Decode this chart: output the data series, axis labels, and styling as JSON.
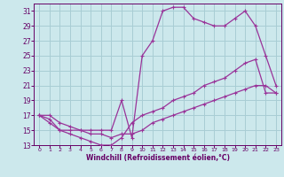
{
  "bg_color": "#cce8ec",
  "grid_color": "#a8cdd4",
  "line_color": "#993399",
  "marker_color": "#993399",
  "xlabel": "Windchill (Refroidissement éolien,°C)",
  "xlabel_color": "#660066",
  "tick_color": "#660066",
  "xlim": [
    -0.5,
    23.5
  ],
  "ylim": [
    13,
    32
  ],
  "yticks": [
    13,
    15,
    17,
    19,
    21,
    23,
    25,
    27,
    29,
    31
  ],
  "xticks": [
    0,
    1,
    2,
    3,
    4,
    5,
    6,
    7,
    8,
    9,
    10,
    11,
    12,
    13,
    14,
    15,
    16,
    17,
    18,
    19,
    20,
    21,
    22,
    23
  ],
  "line1_x": [
    0,
    1,
    2,
    3,
    4,
    5,
    6,
    7,
    8,
    9,
    10,
    11,
    12,
    13,
    14,
    15,
    16,
    17,
    18,
    19,
    20,
    21,
    22,
    23
  ],
  "line1_y": [
    17,
    16.5,
    15,
    14.5,
    14,
    13.5,
    13,
    13,
    14,
    16,
    17,
    17.5,
    18,
    19,
    19.5,
    20,
    21,
    21.5,
    22,
    23,
    24,
    24.5,
    20,
    20
  ],
  "line2_x": [
    0,
    1,
    2,
    3,
    4,
    5,
    6,
    7,
    8,
    9,
    10,
    11,
    12,
    13,
    14,
    15,
    16,
    17,
    18,
    19,
    20,
    21,
    22,
    23
  ],
  "line2_y": [
    17,
    17,
    16,
    15.5,
    15,
    14.5,
    14.5,
    14,
    14.5,
    14.5,
    15,
    16,
    16.5,
    17,
    17.5,
    18,
    18.5,
    19,
    19.5,
    20,
    20.5,
    21,
    21,
    20
  ],
  "line3_x": [
    0,
    1,
    2,
    3,
    4,
    5,
    6,
    7,
    8,
    9,
    10,
    11,
    12,
    13,
    14,
    15,
    16,
    17,
    18,
    19,
    20,
    21,
    22,
    23
  ],
  "line3_y": [
    17,
    16,
    15,
    15,
    15,
    15,
    15,
    15,
    19,
    14,
    25,
    27,
    31,
    31.5,
    31.5,
    30,
    29.5,
    29,
    29,
    30,
    31,
    29,
    25,
    21
  ]
}
